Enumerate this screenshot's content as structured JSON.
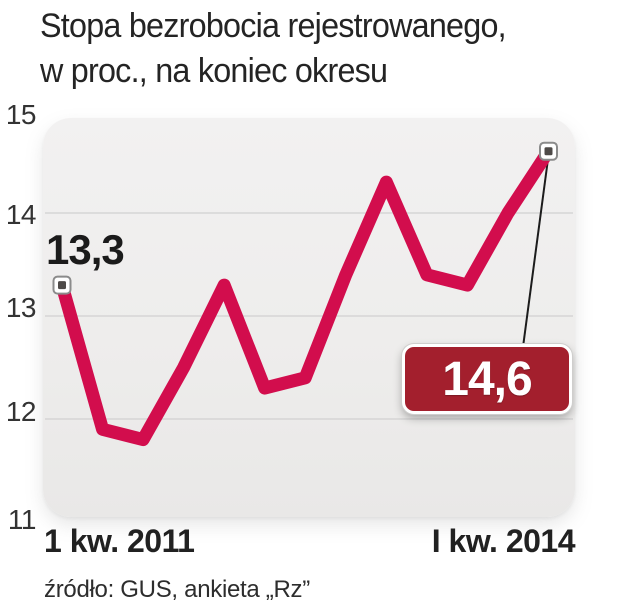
{
  "header": {
    "title_line1": "Stopa bezrobocia rejestrowanego,",
    "title_line2": "w proc., na koniec okresu"
  },
  "footer": {
    "source": "źródło: GUS, ankieta „Rz”"
  },
  "chart_data": {
    "type": "line",
    "title": "Stopa bezrobocia rejestrowanego, w proc., na koniec okresu",
    "x_tick_labels": [
      "1 kw. 2011",
      "I kw. 2014"
    ],
    "y_tick_labels": [
      "15",
      "14",
      "13",
      "12",
      "11"
    ],
    "ylim": [
      11,
      15
    ],
    "y_gridline_values": [
      14,
      13,
      12
    ],
    "grid": "horizontal",
    "series": [
      {
        "name": "Stopa bezrobocia rejestrowanego (proc., koniec kwartału)",
        "values": [
          13.3,
          11.9,
          11.8,
          12.5,
          13.3,
          12.3,
          12.4,
          13.4,
          14.3,
          13.4,
          13.3,
          14.0,
          14.6
        ]
      }
    ],
    "point_labels": {
      "start": "13,3",
      "end": "14,6"
    },
    "colors": {
      "line": "#d20d4d",
      "badge": "#a31f2d",
      "grid": "#d6d5d5",
      "panel": "#efeeee",
      "marker_inner": "#4e4a48"
    }
  }
}
